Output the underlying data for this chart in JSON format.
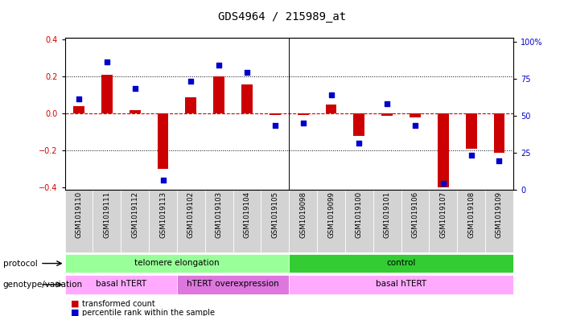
{
  "title": "GDS4964 / 215989_at",
  "samples": [
    "GSM1019110",
    "GSM1019111",
    "GSM1019112",
    "GSM1019113",
    "GSM1019102",
    "GSM1019103",
    "GSM1019104",
    "GSM1019105",
    "GSM1019098",
    "GSM1019099",
    "GSM1019100",
    "GSM1019101",
    "GSM1019106",
    "GSM1019107",
    "GSM1019108",
    "GSM1019109"
  ],
  "bar_values": [
    0.04,
    0.21,
    0.02,
    -0.3,
    0.09,
    0.2,
    0.16,
    -0.005,
    -0.005,
    0.05,
    -0.12,
    -0.01,
    -0.02,
    -0.4,
    -0.19,
    -0.21
  ],
  "dot_values": [
    60,
    85,
    67,
    5,
    72,
    83,
    78,
    42,
    44,
    63,
    30,
    57,
    42,
    3,
    22,
    18
  ],
  "ylim": [
    -0.41,
    0.41
  ],
  "yticks": [
    -0.4,
    -0.2,
    0.0,
    0.2,
    0.4
  ],
  "right_yticks": [
    0,
    25,
    50,
    75,
    100
  ],
  "right_ylabels": [
    "0",
    "25",
    "50",
    "75",
    "100%"
  ],
  "bar_color": "#cc0000",
  "dot_color": "#0000cc",
  "zero_line_color": "#cc0000",
  "protocol_labels": [
    {
      "text": "telomere elongation",
      "start": 0,
      "end": 7,
      "color": "#99ff99"
    },
    {
      "text": "control",
      "start": 8,
      "end": 15,
      "color": "#33cc33"
    }
  ],
  "genotype_labels": [
    {
      "text": "basal hTERT",
      "start": 0,
      "end": 3,
      "color": "#ffaaff"
    },
    {
      "text": "hTERT overexpression",
      "start": 4,
      "end": 7,
      "color": "#dd77dd"
    },
    {
      "text": "basal hTERT",
      "start": 8,
      "end": 15,
      "color": "#ffaaff"
    }
  ],
  "protocol_row_label": "protocol",
  "genotype_row_label": "genotype/variation",
  "legend_bar_label": "transformed count",
  "legend_dot_label": "percentile rank within the sample",
  "title_fontsize": 10,
  "tick_fontsize": 7,
  "label_fontsize": 7.5
}
